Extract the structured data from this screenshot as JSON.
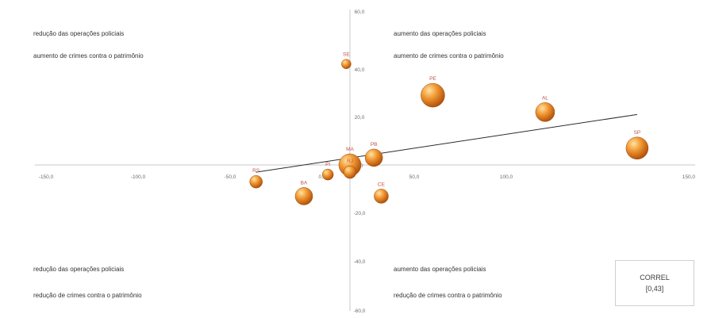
{
  "chart_data": {
    "type": "scatter",
    "xlim": [
      -150,
      150
    ],
    "ylim": [
      -60,
      60
    ],
    "x_ticks": [
      "-150,0",
      "-100,0",
      "-50,0",
      "0,0",
      "50,0",
      "100,0",
      "150,0"
    ],
    "y_ticks": [
      "60,0",
      "40,0",
      "20,0",
      "0,0",
      "-20,0",
      "-40,0",
      "-60,0"
    ],
    "quadrants": {
      "top_left": [
        "redução das operações policiais",
        "aumento de crimes contra o patrimônio"
      ],
      "top_right": [
        "aumento das operações policiais",
        "aumento de crimes contra o patrimônio"
      ],
      "bottom_left": [
        "redução das operações policiais",
        "redução de crimes contra o patrimônio"
      ],
      "bottom_right": [
        "aumento das operações policiais",
        "redução de crimes contra o patrimônio"
      ]
    },
    "points": [
      {
        "label": "SE",
        "x": -2,
        "y": 42,
        "size": 6
      },
      {
        "label": "PE",
        "x": 45,
        "y": 29,
        "size": 15
      },
      {
        "label": "AL",
        "x": 106,
        "y": 22,
        "size": 12
      },
      {
        "label": "SP",
        "x": 156,
        "y": 7,
        "size": 14
      },
      {
        "label": "PB",
        "x": 13,
        "y": 3,
        "size": 11
      },
      {
        "label": "MA",
        "x": 0,
        "y": 0,
        "size": 14
      },
      {
        "label": "RJ",
        "x": 0,
        "y": -3,
        "size": 8
      },
      {
        "label": "PI",
        "x": -12,
        "y": -4,
        "size": 7
      },
      {
        "label": "RS",
        "x": -51,
        "y": -7,
        "size": 8
      },
      {
        "label": "BA",
        "x": -25,
        "y": -13,
        "size": 11
      },
      {
        "label": "CE",
        "x": 17,
        "y": -13,
        "size": 9
      }
    ],
    "trendline": {
      "x": [
        -51,
        156
      ],
      "y": [
        -3,
        21
      ]
    },
    "correl": {
      "title": "CORREL",
      "value": "[0,43]"
    }
  }
}
